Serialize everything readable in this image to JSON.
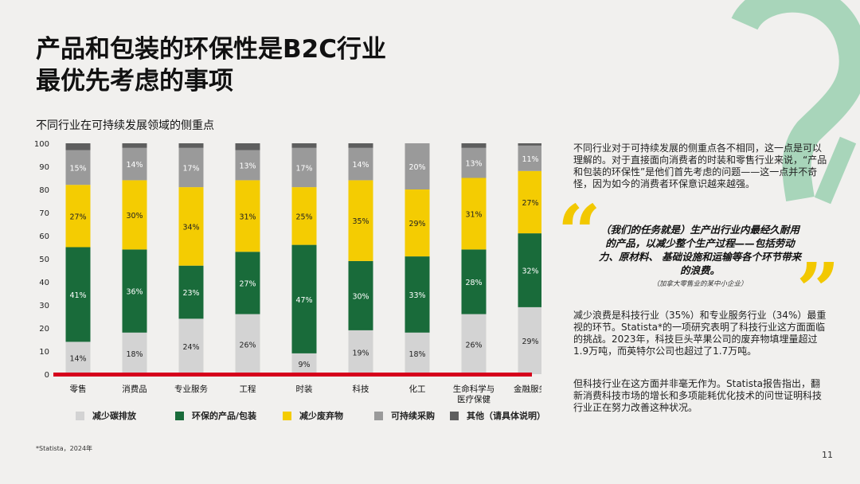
{
  "title_lines": [
    "产品和包装的环保性是B2C行业",
    "最优先考虑的事项"
  ],
  "chart_data": {
    "type": "bar",
    "stacked": true,
    "title": "不同行业在可持续发展领域的侧重点",
    "categories": [
      "零售",
      "消费品",
      "专业服务",
      "工程",
      "时装",
      "科技",
      "化工",
      "生命科学与医疗保健",
      "金融服务"
    ],
    "category_lines": [
      [
        "零售"
      ],
      [
        "消费品"
      ],
      [
        "专业服务"
      ],
      [
        "工程"
      ],
      [
        "时装"
      ],
      [
        "科技"
      ],
      [
        "化工"
      ],
      [
        "生命科学与",
        "医疗保健"
      ],
      [
        "金融服务"
      ]
    ],
    "series": [
      {
        "name": "减少碳排放",
        "color": "#d3d3d3",
        "label_color": "#222222",
        "values": [
          14,
          18,
          24,
          26,
          9,
          19,
          18,
          26,
          29
        ],
        "labels": [
          "14%",
          "18%",
          "24%",
          "26%",
          "9%",
          "19%",
          "18%",
          "26%",
          "29%"
        ]
      },
      {
        "name": "环保的产品/包装",
        "color": "#196b3a",
        "label_color": "#ffffff",
        "values": [
          41,
          36,
          23,
          27,
          47,
          30,
          33,
          28,
          32
        ],
        "labels": [
          "41%",
          "36%",
          "23%",
          "27%",
          "47%",
          "30%",
          "33%",
          "28%",
          "32%"
        ]
      },
      {
        "name": "减少废弃物",
        "color": "#f4cc02",
        "label_color": "#222222",
        "values": [
          27,
          30,
          34,
          31,
          25,
          35,
          29,
          31,
          27
        ],
        "labels": [
          "27%",
          "30%",
          "34%",
          "31%",
          "25%",
          "35%",
          "29%",
          "31%",
          "27%"
        ]
      },
      {
        "name": "可持续采购",
        "color": "#9a9a9a",
        "label_color": "#ffffff",
        "values": [
          15,
          14,
          17,
          13,
          17,
          14,
          20,
          13,
          11
        ],
        "labels": [
          "15%",
          "14%",
          "17%",
          "13%",
          "17%",
          "14%",
          "20%",
          "13%",
          "11%"
        ]
      },
      {
        "name": "其他（请具体说明）",
        "color": "#5e5e5e",
        "label_color": "#ffffff",
        "values": [
          3,
          2,
          2,
          3,
          2,
          2,
          0,
          2,
          1
        ],
        "labels": [
          "",
          "",
          "",
          "",
          "",
          "",
          "",
          "",
          ""
        ]
      }
    ],
    "yticks": [
      0,
      10,
      20,
      30,
      40,
      50,
      60,
      70,
      80,
      90,
      100
    ],
    "ylim": [
      0,
      100
    ],
    "baseline_color": "#d6001c",
    "grid": false,
    "legend_position": "bottom"
  },
  "footnote": "*Statista，2024年",
  "paragraph1": "不同行业对于可持续发展的侧重点各不相同，这一点是可以理解的。对于直接面向消费者的时装和零售行业来说，“产品和包装的环保性”是他们首先考虑的问题——这一点并不奇怪，因为如今的消费者环保意识越来越强。",
  "quote": "（我们的任务就是）生产出行业内最经久耐用的产品，以减少整个生产过程——包括劳动力、原材料、 基础设施和运输等各个环节带来的浪费。",
  "quote_source": "（加拿大零售业的某中小企业）",
  "paragraph2": "减少浪费是科技行业（35%）和专业服务行业（34%）最重视的环节。Statista*的一项研究表明了科技行业这方面面临的挑战。2023年，科技巨头苹果公司的废弃物填埋量超过1.9万吨，而英特尔公司也超过了1.7万吨。",
  "paragraph3": "但科技行业在这方面并非毫无作为。Statista报告指出，翻新消费科技市场的增长和多项能耗优化技术的问世证明科技行业正在努力改善这种状况。",
  "page_number": "11",
  "colors": {
    "accent_yellow": "#f2c800",
    "accent_green": "#196b3a",
    "deco_green": "#8fcca8"
  }
}
